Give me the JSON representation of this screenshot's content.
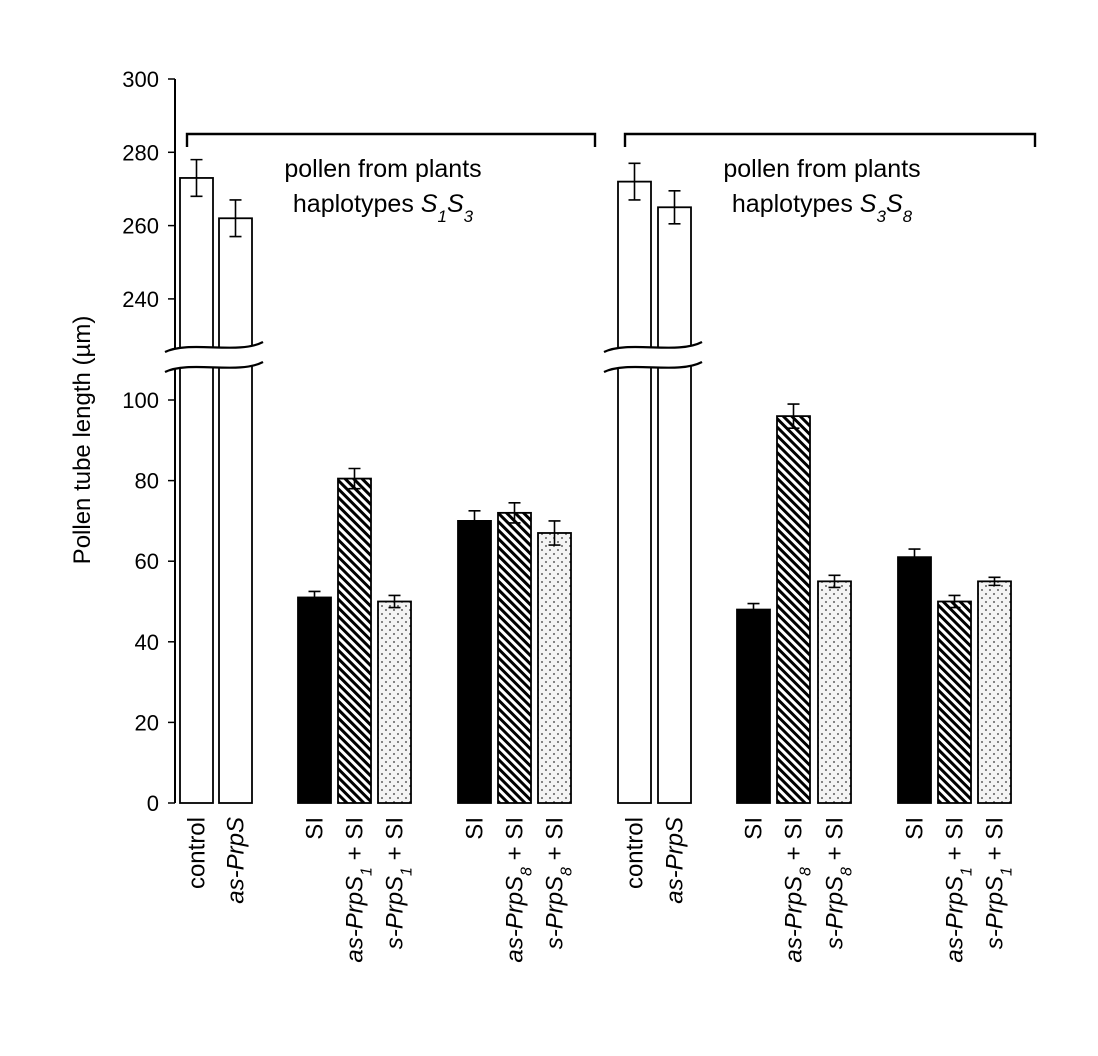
{
  "chart_data": {
    "type": "bar",
    "ylabel": "Pollen tube length (µm)",
    "y_axis": {
      "scale": "broken",
      "lower_range": [
        0,
        110
      ],
      "upper_range": [
        232,
        300
      ],
      "lower_ticks": [
        "0",
        "20",
        "40",
        "60",
        "80",
        "100"
      ],
      "upper_ticks": [
        "240",
        "260",
        "280",
        "300"
      ]
    },
    "grid": false,
    "legend": "none",
    "annotations": [
      {
        "lines": [
          [
            {
              "t": "pollen from plants"
            }
          ],
          [
            {
              "t": "haplotypes "
            },
            {
              "t": "S",
              "i": true
            },
            {
              "t": "1",
              "i": true,
              "sub": true
            },
            {
              "t": "S",
              "i": true
            },
            {
              "t": "3",
              "i": true,
              "sub": true
            }
          ]
        ],
        "spans_bars": [
          0,
          7
        ]
      },
      {
        "lines": [
          [
            {
              "t": "pollen from plants"
            }
          ],
          [
            {
              "t": "haplotypes "
            },
            {
              "t": "S",
              "i": true
            },
            {
              "t": "3",
              "i": true,
              "sub": true
            },
            {
              "t": "S",
              "i": true
            },
            {
              "t": "8",
              "i": true,
              "sub": true
            }
          ]
        ],
        "spans_bars": [
          8,
          15
        ]
      }
    ],
    "bars": [
      {
        "value": 273,
        "error": 5,
        "fill": "white",
        "label": [
          {
            "t": "control"
          }
        ]
      },
      {
        "value": 262,
        "error": 5,
        "fill": "white",
        "label": [
          {
            "t": "as-PrpS",
            "i": true
          }
        ]
      },
      {
        "value": 51,
        "error": 1.5,
        "fill": "black",
        "label": [
          {
            "t": "SI"
          }
        ]
      },
      {
        "value": 80.5,
        "error": 2.5,
        "fill": "hatch",
        "label": [
          {
            "t": "as-PrpS",
            "i": true
          },
          {
            "t": "1",
            "i": true,
            "sub": true
          },
          {
            "t": " + SI"
          }
        ]
      },
      {
        "value": 50,
        "error": 1.5,
        "fill": "dots",
        "label": [
          {
            "t": "s-PrpS",
            "i": true
          },
          {
            "t": "1",
            "i": true,
            "sub": true
          },
          {
            "t": " + SI"
          }
        ]
      },
      {
        "value": 70,
        "error": 2.5,
        "fill": "black",
        "label": [
          {
            "t": "SI"
          }
        ]
      },
      {
        "value": 72,
        "error": 2.5,
        "fill": "hatch",
        "label": [
          {
            "t": "as-PrpS",
            "i": true
          },
          {
            "t": "8",
            "i": true,
            "sub": true
          },
          {
            "t": " + SI"
          }
        ]
      },
      {
        "value": 67,
        "error": 3,
        "fill": "dots",
        "label": [
          {
            "t": "s-PrpS",
            "i": true
          },
          {
            "t": "8",
            "i": true,
            "sub": true
          },
          {
            "t": " + SI"
          }
        ]
      },
      {
        "value": 272,
        "error": 5,
        "fill": "white",
        "label": [
          {
            "t": "control"
          }
        ]
      },
      {
        "value": 265,
        "error": 4.5,
        "fill": "white",
        "label": [
          {
            "t": "as-PrpS",
            "i": true
          }
        ]
      },
      {
        "value": 48,
        "error": 1.5,
        "fill": "black",
        "label": [
          {
            "t": "SI"
          }
        ]
      },
      {
        "value": 96,
        "error": 3,
        "fill": "hatch",
        "label": [
          {
            "t": "as-PrpS",
            "i": true
          },
          {
            "t": "8",
            "i": true,
            "sub": true
          },
          {
            "t": " + SI"
          }
        ]
      },
      {
        "value": 55,
        "error": 1.5,
        "fill": "dots",
        "label": [
          {
            "t": "s-PrpS",
            "i": true
          },
          {
            "t": "8",
            "i": true,
            "sub": true
          },
          {
            "t": " + SI"
          }
        ]
      },
      {
        "value": 61,
        "error": 2,
        "fill": "black",
        "label": [
          {
            "t": "SI"
          }
        ]
      },
      {
        "value": 50,
        "error": 1.5,
        "fill": "hatch",
        "label": [
          {
            "t": "as-PrpS",
            "i": true
          },
          {
            "t": "1",
            "i": true,
            "sub": true
          },
          {
            "t": " + SI"
          }
        ]
      },
      {
        "value": 55,
        "error": 1,
        "fill": "dots",
        "label": [
          {
            "t": "s-PrpS",
            "i": true
          },
          {
            "t": "1",
            "i": true,
            "sub": true
          },
          {
            "t": " + SI"
          }
        ]
      }
    ]
  }
}
